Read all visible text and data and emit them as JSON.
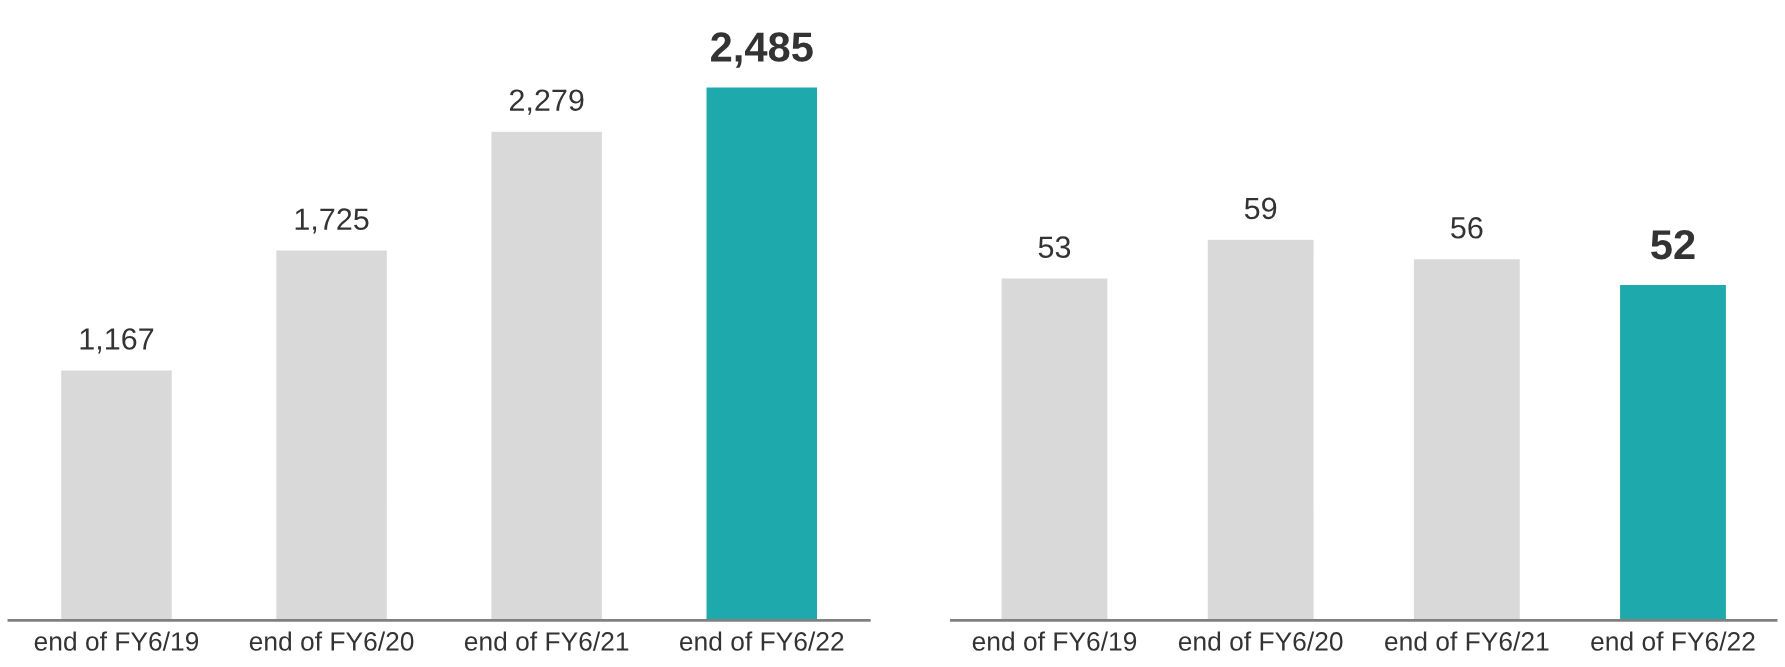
{
  "chart_data": [
    {
      "type": "bar",
      "categories": [
        "end of FY6/19",
        "end of FY6/20",
        "end of FY6/21",
        "end of FY6/22"
      ],
      "values": [
        1167,
        1725,
        2279,
        2485
      ],
      "colors": [
        "#d9d9d9",
        "#d9d9d9",
        "#d9d9d9",
        "#1eaaad"
      ],
      "value_labels": [
        "1,167",
        "1,725",
        "2,279",
        "2,485"
      ],
      "tick_labels": "x",
      "grid": false,
      "legend": false
    },
    {
      "type": "bar",
      "categories": [
        "end of FY6/19",
        "end of FY6/20",
        "end of FY6/21",
        "end of FY6/22"
      ],
      "values": [
        53,
        59,
        56,
        52
      ],
      "colors": [
        "#d9d9d9",
        "#d9d9d9",
        "#d9d9d9",
        "#1eaaad"
      ],
      "value_labels": [
        "53",
        "59",
        "56",
        "52"
      ],
      "tick_labels": "x",
      "grid": false,
      "legend": false
    }
  ]
}
